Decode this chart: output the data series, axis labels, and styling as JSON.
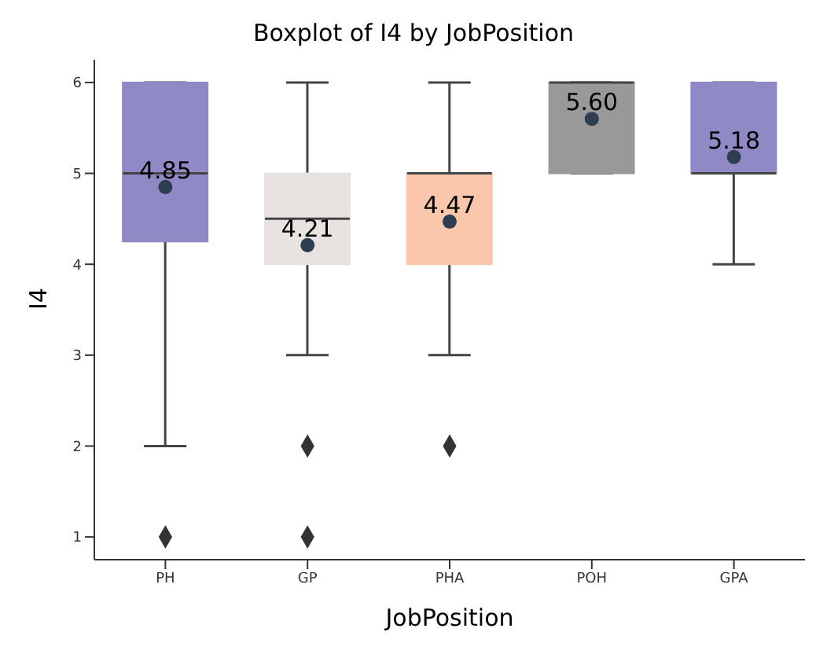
{
  "chart_data": {
    "type": "box",
    "title": "Boxplot of I4 by JobPosition",
    "xlabel": "JobPosition",
    "ylabel": "I4",
    "categories": [
      "PH",
      "GP",
      "PHA",
      "POH",
      "GPA"
    ],
    "ylim": [
      0.75,
      6.25
    ],
    "yticks": [
      1,
      2,
      3,
      4,
      5,
      6
    ],
    "series": [
      {
        "colors": [
          "#8f8ac6",
          "#e8e2e0",
          "#f9c8ac",
          "#999999",
          "#8f8ac6"
        ],
        "boxes": [
          {
            "low": 2,
            "q1": 4.25,
            "median": 5,
            "q3": 6,
            "high": 6,
            "outliers": [
              1
            ]
          },
          {
            "low": 3,
            "q1": 4,
            "median": 4.5,
            "q3": 5,
            "high": 6,
            "outliers": [
              2,
              1
            ]
          },
          {
            "low": 3,
            "q1": 4,
            "median": 5,
            "q3": 5,
            "high": 6,
            "outliers": [
              2
            ]
          },
          {
            "low": 5,
            "q1": 5,
            "median": 6,
            "q3": 6,
            "high": 6
          },
          {
            "low": 4,
            "q1": 5,
            "median": 5,
            "q3": 6,
            "high": 6
          }
        ]
      },
      {
        "type": "scatter",
        "color": "#2c3e50",
        "marker": "circle",
        "values": [
          4.85,
          4.21,
          4.47,
          5.6,
          5.18
        ],
        "value_labels": [
          "4.85",
          "4.21",
          "4.47",
          "5.60",
          "5.18"
        ]
      }
    ]
  }
}
